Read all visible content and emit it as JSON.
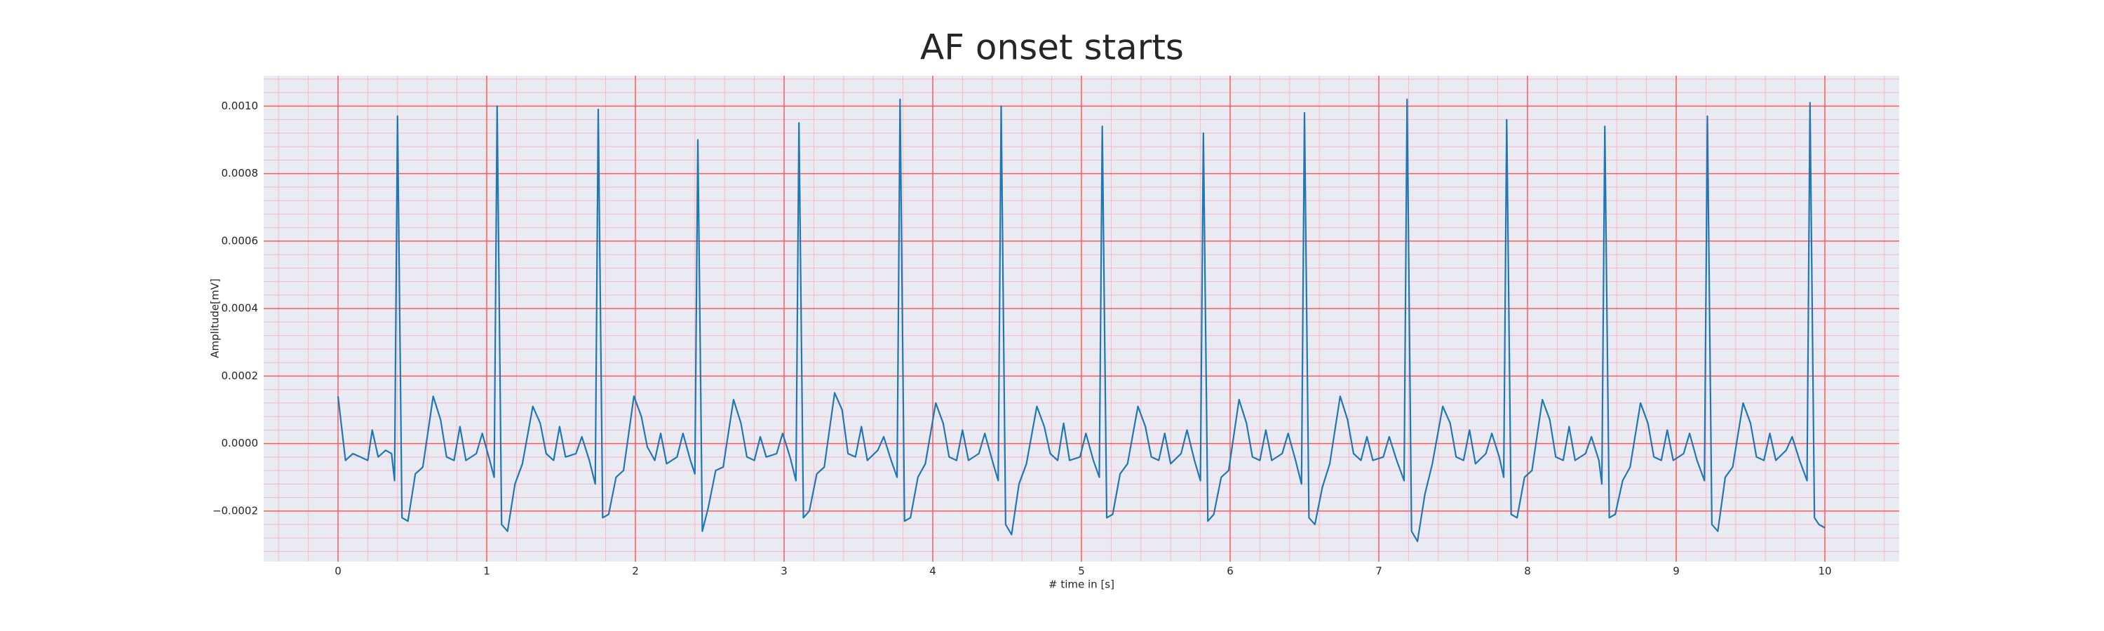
{
  "chart_data": {
    "type": "line",
    "title": "AF onset starts",
    "x_label": "# time in [s]",
    "y_label": "Amplitude[mV]",
    "xlim": [
      -0.5,
      10.5
    ],
    "ylim": [
      -0.00035,
      0.00109
    ],
    "xticks": [
      0,
      1,
      2,
      3,
      4,
      5,
      6,
      7,
      8,
      9,
      10
    ],
    "yticks": [
      {
        "value": -0.0002,
        "label": "−0.0002"
      },
      {
        "value": 0,
        "label": "0.0000"
      },
      {
        "value": 0.0002,
        "label": "0.0002"
      },
      {
        "value": 0.0004,
        "label": "0.0004"
      },
      {
        "value": 0.0006,
        "label": "0.0006"
      },
      {
        "value": 0.0008,
        "label": "0.0008"
      },
      {
        "value": 0.001,
        "label": "0.0010"
      }
    ],
    "grid": true,
    "minor_grid": true,
    "grid_color": "#ff5a5a",
    "minor_grid_color": "#f5b8c8",
    "background": "#eaeaf2",
    "color": "#1f77b4",
    "x": [
      0,
      0.05,
      0.1,
      0.15,
      0.2,
      0.23,
      0.27,
      0.32,
      0.36,
      0.38,
      0.4,
      0.43,
      0.47,
      0.52,
      0.57,
      0.64,
      0.69,
      0.73,
      0.78,
      0.82,
      0.86,
      0.93,
      0.97,
      1.02,
      1.05,
      1.07,
      1.1,
      1.14,
      1.19,
      1.24,
      1.31,
      1.36,
      1.4,
      1.45,
      1.49,
      1.53,
      1.6,
      1.64,
      1.69,
      1.73,
      1.75,
      1.78,
      1.82,
      1.87,
      1.92,
      1.99,
      2.04,
      2.08,
      2.13,
      2.17,
      2.21,
      2.28,
      2.32,
      2.37,
      2.4,
      2.42,
      2.45,
      2.49,
      2.54,
      2.59,
      2.66,
      2.71,
      2.75,
      2.8,
      2.84,
      2.88,
      2.95,
      2.99,
      3.04,
      3.08,
      3.1,
      3.13,
      3.17,
      3.22,
      3.27,
      3.34,
      3.39,
      3.43,
      3.48,
      3.52,
      3.56,
      3.63,
      3.67,
      3.72,
      3.76,
      3.78,
      3.81,
      3.85,
      3.9,
      3.95,
      4.02,
      4.07,
      4.11,
      4.16,
      4.2,
      4.24,
      4.31,
      4.35,
      4.4,
      4.44,
      4.46,
      4.49,
      4.53,
      4.58,
      4.63,
      4.7,
      4.75,
      4.79,
      4.84,
      4.88,
      4.92,
      4.99,
      5.03,
      5.08,
      5.12,
      5.14,
      5.17,
      5.21,
      5.26,
      5.31,
      5.38,
      5.43,
      5.47,
      5.52,
      5.56,
      5.6,
      5.67,
      5.71,
      5.76,
      5.8,
      5.82,
      5.85,
      5.89,
      5.94,
      5.99,
      6.06,
      6.11,
      6.15,
      6.2,
      6.24,
      6.28,
      6.35,
      6.39,
      6.44,
      6.48,
      6.5,
      6.53,
      6.57,
      6.62,
      6.67,
      6.74,
      6.79,
      6.83,
      6.88,
      6.92,
      6.96,
      7.03,
      7.07,
      7.12,
      7.17,
      7.19,
      7.22,
      7.26,
      7.31,
      7.36,
      7.43,
      7.48,
      7.52,
      7.57,
      7.61,
      7.65,
      7.72,
      7.76,
      7.81,
      7.84,
      7.86,
      7.89,
      7.93,
      7.98,
      8.03,
      8.1,
      8.15,
      8.19,
      8.24,
      8.28,
      8.32,
      8.39,
      8.43,
      8.48,
      8.5,
      8.52,
      8.55,
      8.59,
      8.64,
      8.69,
      8.76,
      8.81,
      8.85,
      8.9,
      8.94,
      8.98,
      9.05,
      9.09,
      9.14,
      9.19,
      9.21,
      9.24,
      9.28,
      9.33,
      9.38,
      9.45,
      9.5,
      9.54,
      9.59,
      9.63,
      9.67,
      9.74,
      9.78,
      9.83,
      9.88,
      9.9,
      9.93,
      9.96,
      10.0
    ],
    "values": [
      0.00014,
      -5e-05,
      -3e-05,
      -4e-05,
      -5e-05,
      4e-05,
      -4e-05,
      -2e-05,
      -3e-05,
      -0.00011,
      0.00097,
      -0.00022,
      -0.00023,
      -9e-05,
      -7e-05,
      0.00014,
      7e-05,
      -4e-05,
      -5e-05,
      5e-05,
      -5e-05,
      -3e-05,
      3e-05,
      -5e-05,
      -0.0001,
      0.001,
      -0.00024,
      -0.00026,
      -0.00012,
      -6e-05,
      0.00011,
      6e-05,
      -3e-05,
      -5e-05,
      5e-05,
      -4e-05,
      -3e-05,
      2e-05,
      -5e-05,
      -0.00012,
      0.00099,
      -0.00022,
      -0.00021,
      -0.0001,
      -8e-05,
      0.00014,
      8e-05,
      -1e-05,
      -5e-05,
      3e-05,
      -6e-05,
      -4e-05,
      3e-05,
      -5e-05,
      -9e-05,
      0.0009,
      -0.00026,
      -0.00019,
      -8e-05,
      -7e-05,
      0.00013,
      6e-05,
      -4e-05,
      -5e-05,
      2e-05,
      -4e-05,
      -3e-05,
      3e-05,
      -4e-05,
      -0.00011,
      0.00095,
      -0.00022,
      -0.0002,
      -9e-05,
      -7e-05,
      0.00015,
      0.0001,
      -3e-05,
      -4e-05,
      5e-05,
      -5e-05,
      -2e-05,
      2e-05,
      -5e-05,
      -0.0001,
      0.00102,
      -0.00023,
      -0.00022,
      -0.0001,
      -6e-05,
      0.00012,
      6e-05,
      -4e-05,
      -5e-05,
      4e-05,
      -5e-05,
      -3e-05,
      3e-05,
      -5e-05,
      -0.00011,
      0.001,
      -0.00024,
      -0.00027,
      -0.00012,
      -6e-05,
      0.00011,
      5e-05,
      -3e-05,
      -5e-05,
      6e-05,
      -5e-05,
      -4e-05,
      3e-05,
      -5e-05,
      -0.0001,
      0.00094,
      -0.00022,
      -0.00021,
      -9e-05,
      -6e-05,
      0.00011,
      5e-05,
      -4e-05,
      -5e-05,
      3e-05,
      -6e-05,
      -3e-05,
      4e-05,
      -5e-05,
      -0.00011,
      0.00092,
      -0.00023,
      -0.00021,
      -0.0001,
      -8e-05,
      0.00013,
      6e-05,
      -4e-05,
      -5e-05,
      4e-05,
      -5e-05,
      -3e-05,
      3e-05,
      -5e-05,
      -0.00012,
      0.00098,
      -0.00022,
      -0.00024,
      -0.00013,
      -6e-05,
      0.00014,
      7e-05,
      -3e-05,
      -5e-05,
      2e-05,
      -5e-05,
      -4e-05,
      2e-05,
      -5e-05,
      -0.00011,
      0.00102,
      -0.00026,
      -0.00029,
      -0.00015,
      -6e-05,
      0.00011,
      6e-05,
      -4e-05,
      -5e-05,
      4e-05,
      -6e-05,
      -3e-05,
      3e-05,
      -4e-05,
      -0.0001,
      0.00096,
      -0.00021,
      -0.00022,
      -0.0001,
      -8e-05,
      0.00013,
      7e-05,
      -4e-05,
      -5e-05,
      5e-05,
      -5e-05,
      -3e-05,
      2e-05,
      -5e-05,
      -0.00012,
      0.00094,
      -0.00022,
      -0.00021,
      -0.00011,
      -7e-05,
      0.00012,
      6e-05,
      -4e-05,
      -5e-05,
      4e-05,
      -5e-05,
      -3e-05,
      3e-05,
      -5e-05,
      -0.00011,
      0.00097,
      -0.00024,
      -0.00026,
      -0.0001,
      -7e-05,
      0.00012,
      6e-05,
      -4e-05,
      -5e-05,
      3e-05,
      -5e-05,
      -2e-05,
      2e-05,
      -5e-05,
      -0.00011,
      0.00101,
      -0.00022,
      -0.00024,
      -0.00025
    ]
  }
}
